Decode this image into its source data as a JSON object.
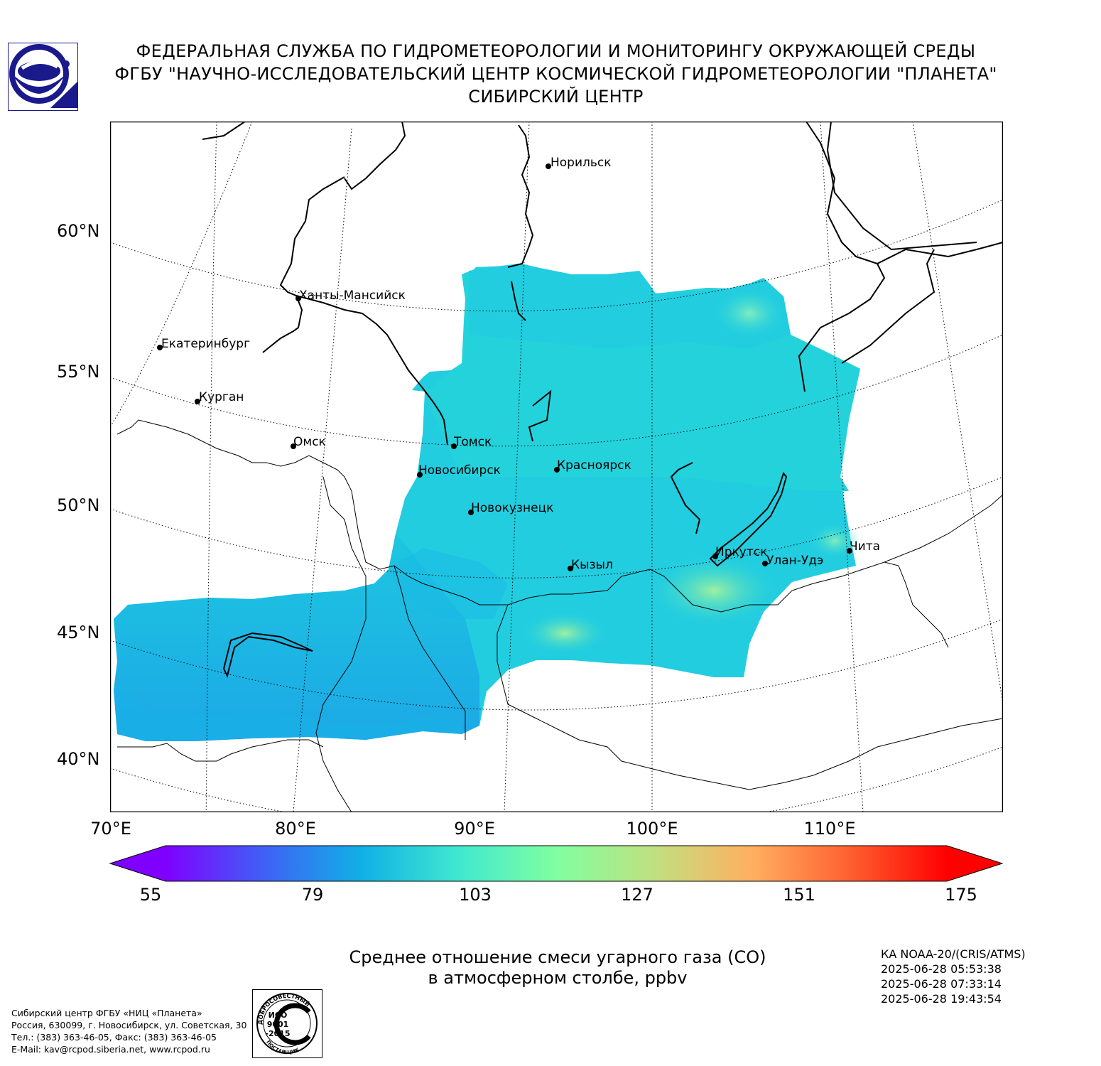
{
  "header": {
    "line1": "ФЕДЕРАЛЬНАЯ СЛУЖБА ПО ГИДРОМЕТЕОРОЛОГИИ И МОНИТОРИНГУ ОКРУЖАЮЩЕЙ СРЕДЫ",
    "line2": "ФГБУ \"НАУЧНО-ИССЛЕДОВАТЕЛЬСКИЙ ЦЕНТР КОСМИЧЕСКОЙ ГИДРОМЕТЕОРОЛОГИИ \"ПЛАНЕТА\"",
    "line3": "СИБИРСКИЙ ЦЕНТР"
  },
  "logo_icon": "planeta-logo-icon",
  "map": {
    "lat_labels": [
      "60°N",
      "55°N",
      "50°N",
      "45°N",
      "40°N"
    ],
    "lon_labels": [
      "70°E",
      "80°E",
      "90°E",
      "100°E",
      "110°E"
    ],
    "cities": [
      {
        "name": "Норильск"
      },
      {
        "name": "Ханты-Мансийск"
      },
      {
        "name": "Екатеринбург"
      },
      {
        "name": "Курган"
      },
      {
        "name": "Омск"
      },
      {
        "name": "Томск"
      },
      {
        "name": "Новосибирск"
      },
      {
        "name": "Красноярск"
      },
      {
        "name": "Новокузнецк"
      },
      {
        "name": "Иркутск"
      },
      {
        "name": "Улан-Удэ"
      },
      {
        "name": "Чита"
      },
      {
        "name": "Кызыл"
      }
    ],
    "colors": {
      "field_main": "#22cce0",
      "field_low": "#1aa8e8",
      "field_high": "#7ff0b4"
    }
  },
  "colorbar": {
    "min": 55,
    "max": 175,
    "ticks": [
      "55",
      "79",
      "103",
      "127",
      "151",
      "175"
    ],
    "colors": [
      "#7f00ff",
      "#4060f6",
      "#10b0e6",
      "#40e8d0",
      "#80ffa0",
      "#c0e080",
      "#ffb060",
      "#ff6030",
      "#ff0000"
    ]
  },
  "caption": {
    "line1": "Среднее отношение смеси угарного газа (CO)",
    "line2": "в атмосферном столбе, ppbv"
  },
  "satellite": {
    "name": "КА NOAA-20/(CRIS/ATMS)",
    "times": [
      "2025-06-28 05:53:38",
      "2025-06-28 07:33:14",
      "2025-06-28 19:43:54"
    ]
  },
  "footer": {
    "lines": [
      "Сибирский центр ФГБУ «НИЦ «Планета»",
      "Россия, 630099, г. Новосибирск, ул. Советская, 30",
      "Тел.: (383) 363-46-05, Факс: (383) 363-46-05",
      "E-Mail: kav@rcpod.siberia.net, www.rcpod.ru"
    ]
  },
  "iso_stamp": {
    "top_text": "ДОБРОСОВЕСТНЫЙ",
    "line1": "ИСО",
    "line2": "9001",
    "line3": "-2015",
    "bottom_text": "ПОСТАВЩИК"
  }
}
